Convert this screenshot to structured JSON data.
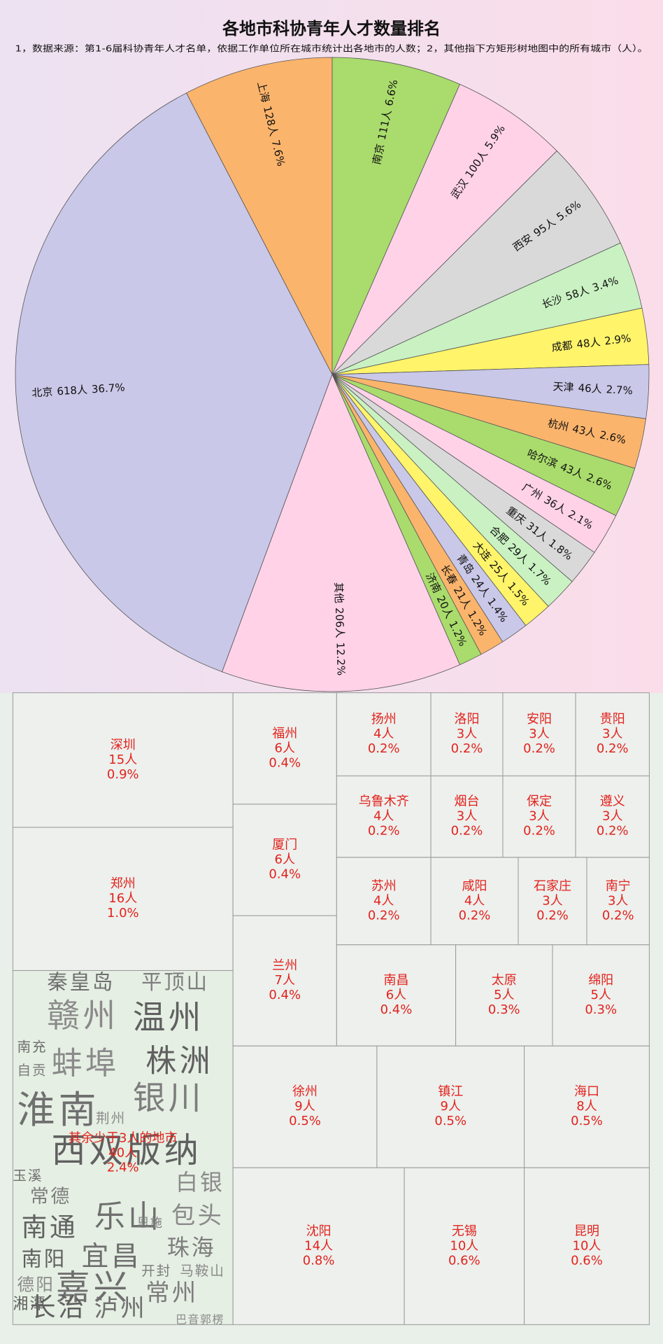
{
  "chart_data": [
    {
      "type": "pie",
      "title": "各地市科协青年人才数量排名",
      "subtitle": "1，数据来源：第1-6届科协青年人才名单，依据工作单位所在城市统计出各地市的人数；2，其他指下方矩形树地图中的所有城市（人）。",
      "categories": [
        "北京",
        "上海",
        "南京",
        "武汉",
        "西安",
        "长沙",
        "成都",
        "天津",
        "杭州",
        "哈尔滨",
        "广州",
        "重庆",
        "合肥",
        "大连",
        "青岛",
        "长春",
        "济南",
        "其他"
      ],
      "values": [
        618,
        128,
        111,
        100,
        95,
        58,
        48,
        46,
        43,
        43,
        36,
        31,
        29,
        25,
        24,
        21,
        20,
        206
      ],
      "value_labels": [
        "618人",
        "128人",
        "111人",
        "100人",
        "95人",
        "58人",
        "48人",
        "46人",
        "43人",
        "43人",
        "36人",
        "31人",
        "29人",
        "25人",
        "24人",
        "21人",
        "20人",
        "206人"
      ],
      "percents": [
        36.7,
        7.6,
        6.6,
        5.9,
        5.6,
        3.4,
        2.9,
        2.7,
        2.6,
        2.6,
        2.1,
        1.8,
        1.7,
        1.5,
        1.4,
        1.2,
        1.2,
        12.2
      ],
      "percent_labels": [
        "36.7%",
        "7.6%",
        "6.6%",
        "5.9%",
        "5.6%",
        "3.4%",
        "2.9%",
        "2.7%",
        "2.6%",
        "2.6%",
        "2.1%",
        "1.8%",
        "1.7%",
        "1.5%",
        "1.4%",
        "1.2%",
        "1.2%",
        "12.2%"
      ],
      "colors": [
        "#c9c8e8",
        "#fbb46c",
        "#a9dc6c",
        "#ffd2e8",
        "#d9d9d9",
        "#c9f1c2",
        "#fff46a",
        "#c9c8e8",
        "#fbb46c",
        "#a9dc6c",
        "#ffd2e8",
        "#d9d9d9",
        "#c9f1c2",
        "#fff46a",
        "#c9c8e8",
        "#fbb46c",
        "#a9dc6c",
        "#ffd2e8"
      ]
    },
    {
      "type": "treemap",
      "categories": [
        "深圳",
        "郑州",
        "其余少于3人的地市",
        "福州",
        "厦门",
        "兰州",
        "扬州",
        "洛阳",
        "安阳",
        "贵阳",
        "乌鲁木齐",
        "烟台",
        "保定",
        "遵义",
        "苏州",
        "咸阳",
        "石家庄",
        "南宁",
        "南昌",
        "太原",
        "绵阳",
        "徐州",
        "镇江",
        "海口",
        "沈阳",
        "无锡",
        "昆明"
      ],
      "values": [
        15,
        16,
        40,
        6,
        6,
        7,
        4,
        3,
        3,
        3,
        4,
        3,
        3,
        3,
        4,
        4,
        3,
        3,
        6,
        5,
        5,
        9,
        9,
        8,
        14,
        10,
        10
      ],
      "value_labels": [
        "15人",
        "16人",
        "40人",
        "6人",
        "6人",
        "7人",
        "4人",
        "3人",
        "3人",
        "3人",
        "4人",
        "3人",
        "3人",
        "3人",
        "4人",
        "4人",
        "3人",
        "3人",
        "6人",
        "5人",
        "5人",
        "9人",
        "9人",
        "8人",
        "14人",
        "10人",
        "10人"
      ],
      "percents": [
        0.9,
        1.0,
        2.4,
        0.4,
        0.4,
        0.4,
        0.2,
        0.2,
        0.2,
        0.2,
        0.2,
        0.2,
        0.2,
        0.2,
        0.2,
        0.2,
        0.2,
        0.2,
        0.4,
        0.3,
        0.3,
        0.5,
        0.5,
        0.5,
        0.8,
        0.6,
        0.6
      ],
      "percent_labels": [
        "0.9%",
        "1.0%",
        "2.4%",
        "0.4%",
        "0.4%",
        "0.4%",
        "0.2%",
        "0.2%",
        "0.2%",
        "0.2%",
        "0.2%",
        "0.2%",
        "0.2%",
        "0.2%",
        "0.2%",
        "0.2%",
        "0.2%",
        "0.2%",
        "0.4%",
        "0.3%",
        "0.3%",
        "0.5%",
        "0.5%",
        "0.5%",
        "0.8%",
        "0.6%",
        "0.6%"
      ],
      "word_cloud": [
        "秦皇岛",
        "平顶山",
        "赣州",
        "温州",
        "南充",
        "自贡",
        "蚌埠",
        "株洲",
        "淮南",
        "银川",
        "荆州",
        "西双版纳",
        "玉溪",
        "常德",
        "白银",
        "南通",
        "乐山",
        "恩施",
        "包头",
        "南阳",
        "宜昌",
        "珠海",
        "德阳",
        "湘潭",
        "嘉兴",
        "开封",
        "马鞍山",
        "长治",
        "泸州",
        "常州",
        "巴音郭楞"
      ]
    }
  ]
}
